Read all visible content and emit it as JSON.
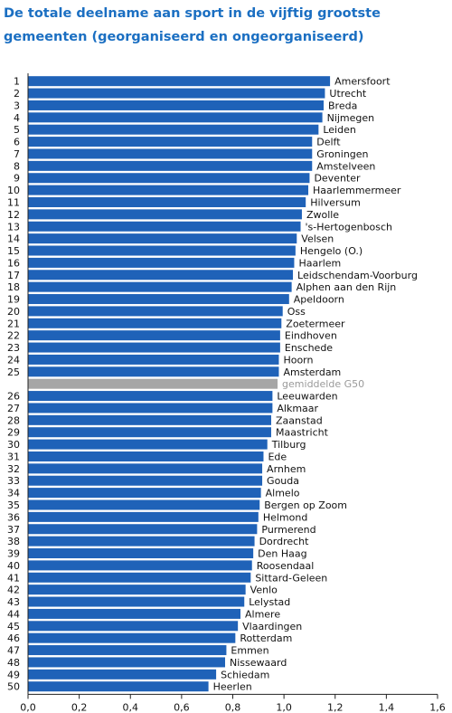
{
  "chart_data": {
    "type": "bar",
    "orientation": "horizontal",
    "title": "De totale deelname aan sport in de vijftig grootste gemeenten (georganiseerd en ongeorganiseerd)",
    "xlim": [
      0,
      1.6
    ],
    "xticks": [
      "0,0",
      "0,2",
      "0,4",
      "0,6",
      "0,8",
      "1,0",
      "1,2",
      "1,4",
      "1,6"
    ],
    "bar_color": "#1f62b8",
    "average_color": "#a6a6a6",
    "grid": false,
    "rows": [
      {
        "rank": "1",
        "name": "Amersfoort",
        "value": 1.18
      },
      {
        "rank": "2",
        "name": "Utrecht",
        "value": 1.16
      },
      {
        "rank": "3",
        "name": "Breda",
        "value": 1.155
      },
      {
        "rank": "4",
        "name": "Nijmegen",
        "value": 1.15
      },
      {
        "rank": "5",
        "name": "Leiden",
        "value": 1.135
      },
      {
        "rank": "6",
        "name": "Delft",
        "value": 1.11
      },
      {
        "rank": "7",
        "name": "Groningen",
        "value": 1.11
      },
      {
        "rank": "8",
        "name": "Amstelveen",
        "value": 1.11
      },
      {
        "rank": "9",
        "name": "Deventer",
        "value": 1.1
      },
      {
        "rank": "10",
        "name": "Haarlemmermeer",
        "value": 1.095
      },
      {
        "rank": "11",
        "name": "Hilversum",
        "value": 1.085
      },
      {
        "rank": "12",
        "name": "Zwolle",
        "value": 1.07
      },
      {
        "rank": "13",
        "name": "'s-Hertogenbosch",
        "value": 1.065
      },
      {
        "rank": "14",
        "name": "Velsen",
        "value": 1.05
      },
      {
        "rank": "15",
        "name": "Hengelo (O.)",
        "value": 1.045
      },
      {
        "rank": "16",
        "name": "Haarlem",
        "value": 1.04
      },
      {
        "rank": "17",
        "name": "Leidschendam-Voorburg",
        "value": 1.035
      },
      {
        "rank": "18",
        "name": "Alphen aan den Rijn",
        "value": 1.03
      },
      {
        "rank": "19",
        "name": "Apeldoorn",
        "value": 1.02
      },
      {
        "rank": "20",
        "name": "Oss",
        "value": 0.995
      },
      {
        "rank": "21",
        "name": "Zoetermeer",
        "value": 0.99
      },
      {
        "rank": "22",
        "name": "Eindhoven",
        "value": 0.985
      },
      {
        "rank": "23",
        "name": "Enschede",
        "value": 0.985
      },
      {
        "rank": "24",
        "name": "Hoorn",
        "value": 0.98
      },
      {
        "rank": "25",
        "name": "Amsterdam",
        "value": 0.98
      },
      {
        "rank": "",
        "name": "gemiddelde G50",
        "value": 0.975,
        "average": true
      },
      {
        "rank": "26",
        "name": "Leeuwarden",
        "value": 0.955
      },
      {
        "rank": "27",
        "name": "Alkmaar",
        "value": 0.955
      },
      {
        "rank": "28",
        "name": "Zaanstad",
        "value": 0.95
      },
      {
        "rank": "29",
        "name": "Maastricht",
        "value": 0.95
      },
      {
        "rank": "30",
        "name": "Tilburg",
        "value": 0.935
      },
      {
        "rank": "31",
        "name": "Ede",
        "value": 0.92
      },
      {
        "rank": "32",
        "name": "Arnhem",
        "value": 0.915
      },
      {
        "rank": "33",
        "name": "Gouda",
        "value": 0.915
      },
      {
        "rank": "34",
        "name": "Almelo",
        "value": 0.91
      },
      {
        "rank": "35",
        "name": "Bergen op Zoom",
        "value": 0.905
      },
      {
        "rank": "36",
        "name": "Helmond",
        "value": 0.9
      },
      {
        "rank": "37",
        "name": "Purmerend",
        "value": 0.895
      },
      {
        "rank": "38",
        "name": "Dordrecht",
        "value": 0.885
      },
      {
        "rank": "39",
        "name": "Den Haag",
        "value": 0.88
      },
      {
        "rank": "40",
        "name": "Roosendaal",
        "value": 0.875
      },
      {
        "rank": "41",
        "name": "Sittard-Geleen",
        "value": 0.87
      },
      {
        "rank": "42",
        "name": "Venlo",
        "value": 0.85
      },
      {
        "rank": "43",
        "name": "Lelystad",
        "value": 0.845
      },
      {
        "rank": "44",
        "name": "Almere",
        "value": 0.83
      },
      {
        "rank": "45",
        "name": "Vlaardingen",
        "value": 0.82
      },
      {
        "rank": "46",
        "name": "Rotterdam",
        "value": 0.81
      },
      {
        "rank": "47",
        "name": "Emmen",
        "value": 0.775
      },
      {
        "rank": "48",
        "name": "Nissewaard",
        "value": 0.77
      },
      {
        "rank": "49",
        "name": "Schiedam",
        "value": 0.735
      },
      {
        "rank": "50",
        "name": "Heerlen",
        "value": 0.705
      }
    ]
  }
}
